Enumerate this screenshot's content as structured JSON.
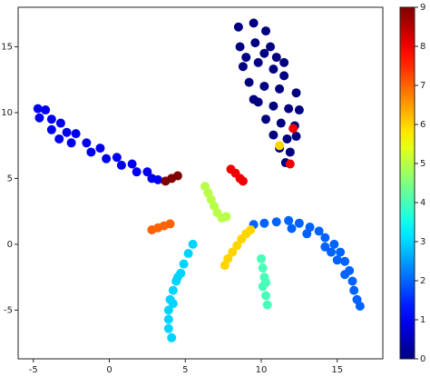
{
  "chart_data": {
    "type": "scatter",
    "x": [
      8.5,
      9.5,
      10.3,
      8.6,
      9.6,
      10.6,
      11,
      8.8,
      9.8,
      10.8,
      11.5,
      9.2,
      10.2,
      11.2,
      12.3,
      9.8,
      10.8,
      11.8,
      12.5,
      10.3,
      11.3,
      12.2,
      10.8,
      11.7,
      12.3,
      11.2,
      11.9,
      11.6,
      9,
      10.2,
      9.5,
      11.5,
      -4.7,
      -4.2,
      -4.6,
      -3.8,
      -3.2,
      -3.8,
      -2.8,
      -2.2,
      -2.5,
      -1.5,
      -1.2,
      -0.6,
      -0.2,
      0.5,
      0.8,
      1.5,
      1.8,
      2.5,
      2.8,
      3.2,
      -3.3,
      9.5,
      10.2,
      11,
      11.8,
      12.5,
      13.2,
      13.8,
      12,
      13,
      14.2,
      14.8,
      14.2,
      15.2,
      15.5,
      15,
      15.8,
      15.5,
      16,
      16.1,
      16.3,
      16.5,
      14.6,
      5.5,
      5.2,
      4.9,
      4.7,
      4.4,
      4.2,
      4,
      3.9,
      3.9,
      3.9,
      4.1,
      4.5,
      4.2,
      10,
      10.1,
      10.2,
      10.1,
      10.3,
      10.4,
      10.3,
      6.3,
      6.5,
      6.7,
      6.9,
      7.1,
      7.4,
      7.7,
      7.6,
      7.8,
      8.1,
      8.4,
      8.7,
      9,
      9.3,
      2.8,
      3.2,
      3.6,
      4,
      8,
      8.3,
      8.6,
      8.8,
      3.7,
      4.1,
      4.5,
      12.1,
      11.2,
      11.9
    ],
    "y": [
      16.5,
      16.8,
      16.2,
      15,
      15.3,
      15,
      14.2,
      13.5,
      13.8,
      13.3,
      12.8,
      12.3,
      12,
      11.8,
      11.5,
      10.8,
      10.5,
      10.3,
      10.2,
      9.5,
      9.2,
      9,
      8.3,
      8,
      8.2,
      7.3,
      7,
      6.2,
      14.2,
      14.5,
      11,
      13.8,
      10.3,
      10.2,
      9.6,
      9.5,
      9.2,
      8.7,
      8.5,
      8.4,
      7.7,
      7.7,
      7,
      7.3,
      6.5,
      6.6,
      6,
      6.1,
      5.5,
      5.5,
      5,
      4.9,
      8,
      1.5,
      1.6,
      1.7,
      1.8,
      1.6,
      1.3,
      1,
      1.2,
      0.8,
      0.5,
      0,
      -0.2,
      -0.6,
      -1.3,
      -1.2,
      -2,
      -2.3,
      -2.8,
      -3.5,
      -4.2,
      -4.7,
      -0.6,
      0,
      -0.7,
      -1.5,
      -2.2,
      -2.8,
      -3.5,
      -4.2,
      -5,
      -5.7,
      -6.4,
      -7.1,
      -2.5,
      -4.5,
      -1.1,
      -1.8,
      -2.5,
      -3.2,
      -3.9,
      -4.6,
      -2.9,
      4.4,
      3.9,
      3.4,
      2.9,
      2.4,
      2,
      2.1,
      -1.6,
      -1.1,
      -0.6,
      -0.1,
      0.4,
      0.8,
      1.1,
      1.1,
      1.25,
      1.4,
      1.55,
      5.7,
      5.4,
      5,
      4.8,
      4.8,
      5,
      5.2,
      8.8,
      7.5,
      6.1
    ],
    "c": [
      0,
      0,
      0,
      0,
      0,
      0,
      0,
      0,
      0,
      0,
      0,
      0,
      0,
      0,
      0,
      0,
      0,
      0,
      0,
      0,
      0,
      0,
      0,
      0,
      0,
      0,
      0,
      0,
      0,
      0,
      0,
      0,
      1,
      1,
      1,
      1,
      1,
      1,
      1,
      1,
      1,
      1,
      1,
      1,
      1,
      1,
      1,
      1,
      1,
      1,
      1,
      1,
      1,
      2,
      2,
      2,
      2,
      2,
      2,
      2,
      2,
      2,
      2,
      2,
      2,
      2,
      2,
      2,
      2,
      2,
      2,
      2,
      2,
      2,
      2,
      3,
      3,
      3,
      3,
      3,
      3,
      3,
      3,
      3,
      3,
      3,
      3,
      3,
      4,
      4,
      4,
      4,
      4,
      4,
      4,
      5,
      5,
      5,
      5,
      5,
      5,
      5,
      6,
      6,
      6,
      6,
      6,
      6,
      6,
      7,
      7,
      7,
      7,
      8,
      8,
      8,
      8,
      9,
      9,
      9,
      8,
      6,
      8
    ],
    "colormap": "jet",
    "xlim": [
      -6,
      18
    ],
    "xticks": [
      -5,
      0,
      5,
      10,
      15
    ],
    "ylim": [
      -8.7,
      18
    ],
    "yticks": [
      -5,
      0,
      5,
      10,
      15
    ],
    "clim": [
      0,
      9
    ],
    "cticks": [
      0,
      1,
      2,
      3,
      4,
      5,
      6,
      7,
      8,
      9
    ]
  }
}
